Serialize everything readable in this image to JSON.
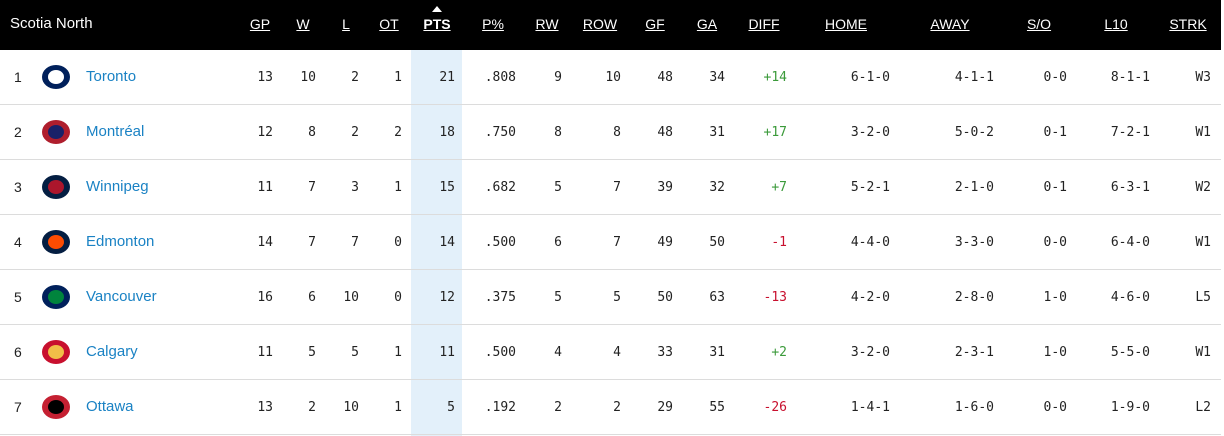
{
  "header": {
    "title": "Scotia North"
  },
  "table": {
    "columns": [
      "GP",
      "W",
      "L",
      "OT",
      "PTS",
      "P%",
      "RW",
      "ROW",
      "GF",
      "GA",
      "DIFF",
      "HOME",
      "AWAY",
      "S/O",
      "L10",
      "STRK"
    ],
    "rows": [
      {
        "rank": "1",
        "team": "Toronto",
        "stats": [
          "13",
          "10",
          "2",
          "1",
          "21",
          ".808",
          "9",
          "10",
          "48",
          "34",
          "+14",
          "6-1-0",
          "4-1-1",
          "0-0",
          "8-1-1",
          "W3"
        ]
      },
      {
        "rank": "2",
        "team": "Montréal",
        "stats": [
          "12",
          "8",
          "2",
          "2",
          "18",
          ".750",
          "8",
          "8",
          "48",
          "31",
          "+17",
          "3-2-0",
          "5-0-2",
          "0-1",
          "7-2-1",
          "W1"
        ]
      },
      {
        "rank": "3",
        "team": "Winnipeg",
        "stats": [
          "11",
          "7",
          "3",
          "1",
          "15",
          ".682",
          "5",
          "7",
          "39",
          "32",
          "+7",
          "5-2-1",
          "2-1-0",
          "0-1",
          "6-3-1",
          "W2"
        ]
      },
      {
        "rank": "4",
        "team": "Edmonton",
        "stats": [
          "14",
          "7",
          "7",
          "0",
          "14",
          ".500",
          "6",
          "7",
          "49",
          "50",
          "-1",
          "4-4-0",
          "3-3-0",
          "0-0",
          "6-4-0",
          "W1"
        ]
      },
      {
        "rank": "5",
        "team": "Vancouver",
        "stats": [
          "16",
          "6",
          "10",
          "0",
          "12",
          ".375",
          "5",
          "5",
          "50",
          "63",
          "-13",
          "4-2-0",
          "2-8-0",
          "1-0",
          "4-6-0",
          "L5"
        ]
      },
      {
        "rank": "6",
        "team": "Calgary",
        "stats": [
          "11",
          "5",
          "5",
          "1",
          "11",
          ".500",
          "4",
          "4",
          "33",
          "31",
          "+2",
          "3-2-0",
          "2-3-1",
          "1-0",
          "5-5-0",
          "W1"
        ]
      },
      {
        "rank": "7",
        "team": "Ottawa",
        "stats": [
          "13",
          "2",
          "10",
          "1",
          "5",
          ".192",
          "2",
          "2",
          "29",
          "55",
          "-26",
          "1-4-1",
          "1-6-0",
          "0-0",
          "1-9-0",
          "L2"
        ]
      }
    ]
  }
}
